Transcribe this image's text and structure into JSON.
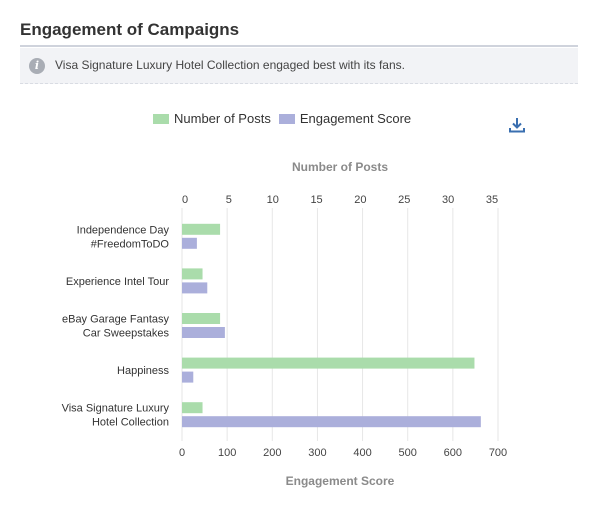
{
  "header": {
    "title": "Engagement of Campaigns"
  },
  "info": {
    "icon": "info-icon",
    "text": "Visa Signature Luxury Hotel Collection engaged best with its fans."
  },
  "toolbar": {
    "download_icon": "download-icon"
  },
  "colors": {
    "posts": "#aadcab",
    "engagement": "#abafdb",
    "grid": "#e6e6e6"
  },
  "chart_data": {
    "type": "bar",
    "orientation": "horizontal",
    "categories": [
      [
        "Independence Day",
        "#FreedomToDO"
      ],
      [
        "Experience Intel Tour"
      ],
      [
        "eBay Garage Fantasy",
        "Car Sweepstakes"
      ],
      [
        "Happiness"
      ],
      [
        "Visa Signature Luxury",
        "Hotel Collection"
      ]
    ],
    "series": [
      {
        "name": "Number of Posts",
        "axis": "top",
        "values": [
          4,
          2,
          4,
          33,
          2
        ]
      },
      {
        "name": "Engagement Score",
        "axis": "bottom",
        "values": [
          33,
          56,
          95,
          25,
          662
        ]
      }
    ],
    "top_axis": {
      "label": "Number of Posts",
      "range": [
        0,
        35
      ],
      "ticks": [
        0,
        5,
        10,
        15,
        20,
        25,
        30,
        35
      ]
    },
    "bottom_axis": {
      "label": "Engagement Score",
      "range": [
        0,
        700
      ],
      "ticks": [
        0,
        100,
        200,
        300,
        400,
        500,
        600,
        700
      ]
    },
    "legend_position": "top",
    "grid": true
  }
}
